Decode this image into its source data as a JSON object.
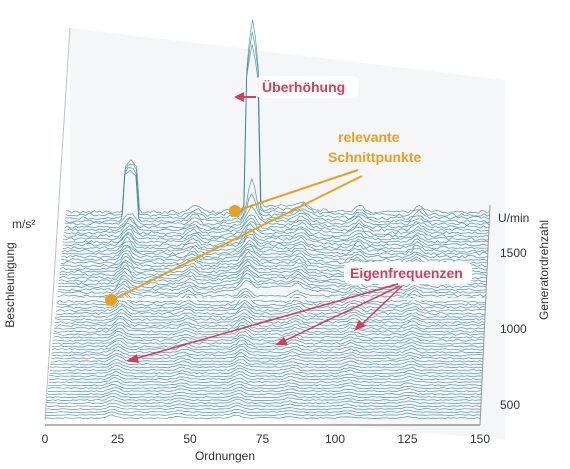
{
  "chart_data": {
    "type": "waterfall",
    "title": "",
    "xlabel": "Ordnungen",
    "ylabel": "Beschleunigung",
    "yunit": "m/s²",
    "zlabel": "Generatordrehzahl",
    "zunit": "U/min",
    "xlim": [
      0,
      150
    ],
    "x_ticks": [
      0,
      25,
      50,
      75,
      100,
      125,
      150
    ],
    "zlim": [
      400,
      1750
    ],
    "z_ticks": [
      500,
      1000,
      1500
    ],
    "grid": false,
    "legend": "none",
    "colors": {
      "traces": "#3a86a0",
      "resonance_annotation": "#d0405a",
      "intersection_annotation": "#e8a020"
    },
    "peaks": [
      {
        "order": 23,
        "note": "strong order line"
      },
      {
        "order": 46,
        "note": "order line"
      },
      {
        "order": 66,
        "note": "dominant order line with overshoot near upper speeds"
      },
      {
        "order": 84,
        "note": "order line"
      },
      {
        "order": 104,
        "note": "order line"
      },
      {
        "order": 125,
        "note": "weak order line"
      }
    ],
    "annotations": {
      "overshoot": "Überhöhung",
      "relevant_intersections_line1": "relevante",
      "relevant_intersections_line2": "Schnittpunkte",
      "natural_frequencies": "Eigenfrequenzen"
    }
  }
}
